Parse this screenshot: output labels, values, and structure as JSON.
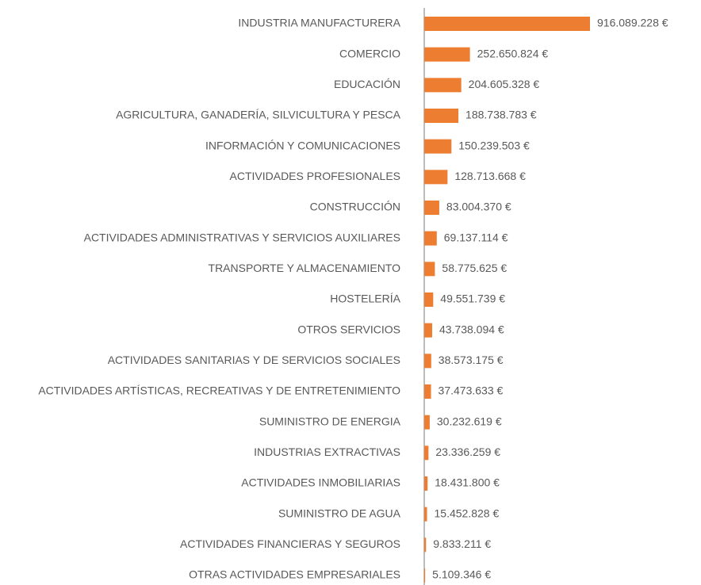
{
  "chart_data": {
    "type": "bar",
    "orientation": "horizontal",
    "color": "#ed7d31",
    "categories": [
      "INDUSTRIA MANUFACTURERA",
      "COMERCIO",
      "EDUCACIÓN",
      "AGRICULTURA, GANADERÍA, SILVICULTURA Y PESCA",
      "INFORMACIÓN Y COMUNICACIONES",
      "ACTIVIDADES PROFESIONALES",
      "CONSTRUCCIÓN",
      "ACTIVIDADES ADMINISTRATIVAS Y SERVICIOS AUXILIARES",
      "TRANSPORTE Y ALMACENAMIENTO",
      "HOSTELERÍA",
      "OTROS SERVICIOS",
      "ACTIVIDADES SANITARIAS Y DE SERVICIOS SOCIALES",
      "ACTIVIDADES ARTÍSTICAS, RECREATIVAS Y DE ENTRETENIMIENTO",
      "SUMINISTRO DE ENERGIA",
      "INDUSTRIAS EXTRACTIVAS",
      "ACTIVIDADES INMOBILIARIAS",
      "SUMINISTRO DE AGUA",
      "ACTIVIDADES FINANCIERAS Y SEGUROS",
      "OTRAS ACTIVIDADES EMPRESARIALES"
    ],
    "values": [
      916089228,
      252650824,
      204605328,
      188738783,
      150239503,
      128713668,
      83004370,
      69137114,
      58775625,
      49551739,
      43738094,
      38573175,
      37473633,
      30232619,
      23336259,
      18431800,
      15452828,
      9833211,
      5109346
    ],
    "value_labels": [
      "916.089.228 €",
      "252.650.824 €",
      "204.605.328 €",
      "188.738.783 €",
      "150.239.503 €",
      "128.713.668 €",
      "83.004.370 €",
      "69.137.114 €",
      "58.775.625 €",
      "49.551.739 €",
      "43.738.094 €",
      "38.573.175 €",
      "37.473.633 €",
      "30.232.619 €",
      "23.336.259 €",
      "18.431.800 €",
      "15.452.828 €",
      "9.833.211 €",
      "5.109.346 €"
    ]
  }
}
